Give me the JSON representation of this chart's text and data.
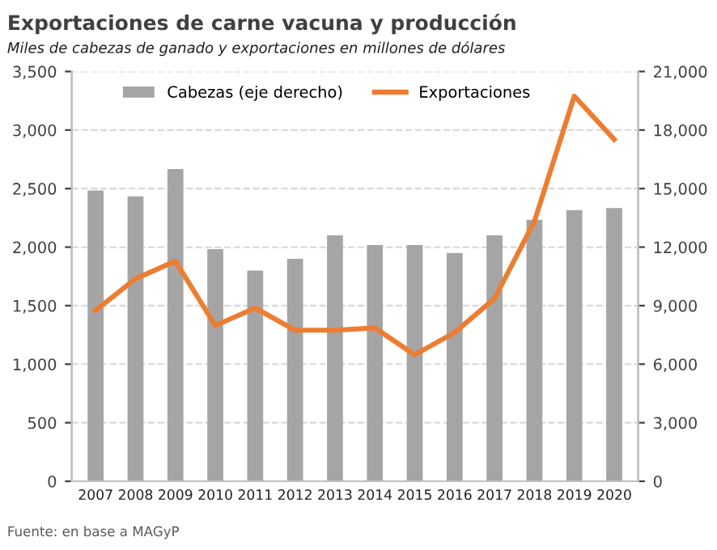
{
  "chart_data": {
    "type": "bar",
    "title": "Exportaciones de carne vacuna y producción",
    "subtitle": "Miles de cabezas de ganado y exportaciones en millones de dólares",
    "categories": [
      "2007",
      "2008",
      "2009",
      "2010",
      "2011",
      "2012",
      "2013",
      "2014",
      "2015",
      "2016",
      "2017",
      "2018",
      "2019",
      "2020"
    ],
    "series": [
      {
        "name": "Cabezas (eje derecho)",
        "axis": "y2",
        "color": "#a5a5a5",
        "values": [
          14900,
          14600,
          16000,
          11900,
          10800,
          11400,
          12600,
          12100,
          12100,
          11700,
          12600,
          13400,
          13900,
          14000
        ]
      },
      {
        "name": "Exportaciones",
        "type": "line",
        "color": "#ed7d31",
        "values": [
          1460,
          1730,
          1880,
          1330,
          1480,
          1290,
          1290,
          1310,
          1080,
          1270,
          1560,
          2220,
          3290,
          2920
        ]
      }
    ],
    "ylim": [
      0,
      3500
    ],
    "yticks": [
      {
        "value": 0,
        "label": "0"
      },
      {
        "value": 500,
        "label": "500"
      },
      {
        "value": 1000,
        "label": "1,000"
      },
      {
        "value": 1500,
        "label": "1,500"
      },
      {
        "value": 2000,
        "label": "2,000"
      },
      {
        "value": 2500,
        "label": "2,500"
      },
      {
        "value": 3000,
        "label": "3,000"
      },
      {
        "value": 3500,
        "label": "3,500"
      }
    ],
    "y2lim": [
      0,
      21000
    ],
    "y2ticks": [
      {
        "value": 0,
        "label": "0"
      },
      {
        "value": 3000,
        "label": "3,000"
      },
      {
        "value": 6000,
        "label": "6,000"
      },
      {
        "value": 9000,
        "label": "9,000"
      },
      {
        "value": 12000,
        "label": "12,000"
      },
      {
        "value": 15000,
        "label": "15,000"
      },
      {
        "value": 18000,
        "label": "18,000"
      },
      {
        "value": 21000,
        "label": "21,000"
      }
    ],
    "grid": "y",
    "legend": "top",
    "marker": "none",
    "line_style": "solid",
    "annotations": [
      "Fuente: en base a MAGyP"
    ]
  }
}
